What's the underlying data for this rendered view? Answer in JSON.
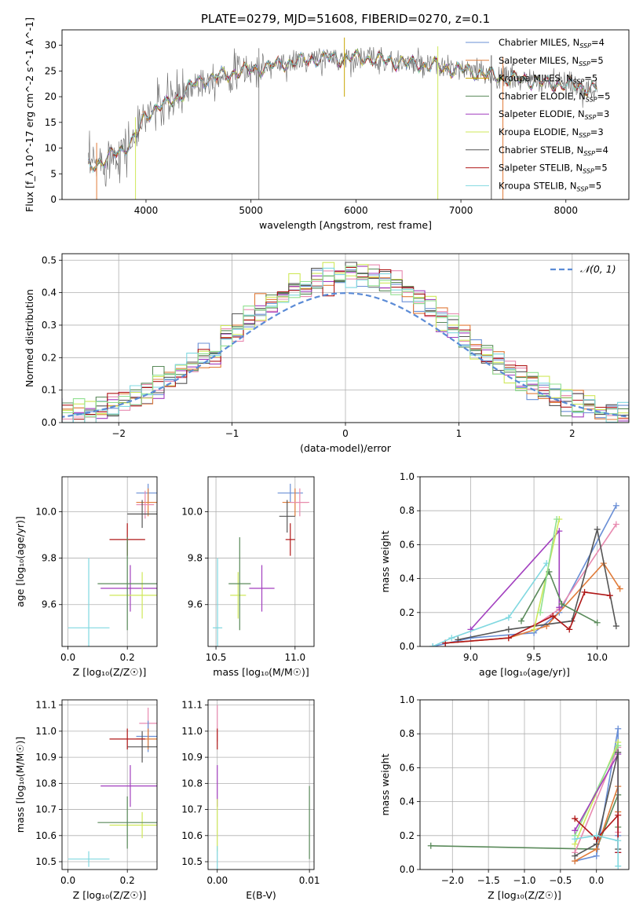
{
  "figure_title": "PLATE=0279, MJD=51608, FIBERID=0270, z=0.1",
  "colors": {
    "Chabrier MILES": "#6a8fd6",
    "Salpeter MILES": "#e07b39",
    "Kroupa MILES": "#c7a400",
    "Chabrier ELODIE": "#5a8a5a",
    "Salpeter ELODIE": "#a23fbf",
    "Kroupa ELODIE": "#cfe85a",
    "Chabrier STELIB": "#555555",
    "Salpeter STELIB": "#b01818",
    "Kroupa STELIB": "#80d8e0",
    "Salpeter MILES 2": "#e88ab0",
    "Kroupa MILES 2": "#90e090",
    "normal": "#5b8bd6",
    "grid": "#b0b0b0"
  },
  "chart_data": [
    {
      "id": "spectrum",
      "type": "line",
      "title": "PLATE=0279, MJD=51608, FIBERID=0270, z=0.1",
      "xlabel": "wavelength [Angstrom, rest frame]",
      "ylabel": "Flux [f_λ 10^-17 erg cm^-2 s^-1 A^-1]",
      "xlim": [
        3200,
        8600
      ],
      "ylim": [
        0,
        33
      ],
      "xticks": [
        4000,
        5000,
        6000,
        7000,
        8000
      ],
      "yticks": [
        0,
        5,
        10,
        15,
        20,
        25,
        30
      ],
      "grid": false,
      "legend_position": "top-right",
      "legend": [
        {
          "label": "Chabrier MILES, N",
          "sub": "SSP",
          "suffix": "=4",
          "color": "#6a8fd6"
        },
        {
          "label": "Salpeter MILES, N",
          "sub": "SSP",
          "suffix": "=5",
          "color": "#e07b39"
        },
        {
          "label": "Kroupa MILES, N",
          "sub": "SSP",
          "suffix": "=5",
          "color": "#c7a400"
        },
        {
          "label": "Chabrier ELODIE, N",
          "sub": "SSP",
          "suffix": "=5",
          "color": "#5a8a5a"
        },
        {
          "label": "Salpeter ELODIE, N",
          "sub": "SSP",
          "suffix": "=3",
          "color": "#a23fbf"
        },
        {
          "label": "Kroupa ELODIE, N",
          "sub": "SSP",
          "suffix": "=3",
          "color": "#cfe85a"
        },
        {
          "label": "Chabrier STELIB, N",
          "sub": "SSP",
          "suffix": "=4",
          "color": "#555555"
        },
        {
          "label": "Salpeter STELIB, N",
          "sub": "SSP",
          "suffix": "=5",
          "color": "#b01818"
        },
        {
          "label": "Kroupa STELIB, N",
          "sub": "SSP",
          "suffix": "=5",
          "color": "#80d8e0"
        }
      ],
      "continuum": [
        [
          3450,
          6.5
        ],
        [
          3600,
          7.5
        ],
        [
          3700,
          9
        ],
        [
          3800,
          10
        ],
        [
          3900,
          12
        ],
        [
          3980,
          16
        ],
        [
          4100,
          18
        ],
        [
          4200,
          18.5
        ],
        [
          4300,
          20
        ],
        [
          4400,
          21.5
        ],
        [
          4500,
          23
        ],
        [
          4700,
          24
        ],
        [
          4900,
          25
        ],
        [
          5100,
          25.5
        ],
        [
          5300,
          26.5
        ],
        [
          5500,
          27
        ],
        [
          5700,
          27.5
        ],
        [
          5900,
          27.5
        ],
        [
          6100,
          27.5
        ],
        [
          6300,
          27
        ],
        [
          6500,
          26.5
        ],
        [
          6700,
          26
        ],
        [
          6900,
          25.5
        ],
        [
          7100,
          25
        ],
        [
          7300,
          24
        ],
        [
          7500,
          23.5
        ],
        [
          7700,
          23
        ],
        [
          7900,
          22.5
        ],
        [
          8100,
          22
        ],
        [
          8300,
          21.5
        ]
      ],
      "spikes": [
        {
          "x": 5075,
          "y": 0
        },
        {
          "x": 5890,
          "y": 20
        },
        {
          "x": 6780,
          "y": 0
        },
        {
          "x": 7290,
          "y": 0
        },
        {
          "x": 7400,
          "y": 0
        },
        {
          "x": 3900,
          "y": 0
        },
        {
          "x": 3530,
          "y": 0
        }
      ]
    },
    {
      "id": "residuals",
      "type": "histogram",
      "xlabel": "(data-model)/error",
      "ylabel": "Normed distribution",
      "xlim": [
        -2.5,
        2.5
      ],
      "ylim": [
        0,
        0.52
      ],
      "xticks": [
        -2,
        -1,
        0,
        1,
        2
      ],
      "yticks": [
        0.0,
        0.1,
        0.2,
        0.3,
        0.4,
        0.5
      ],
      "grid": true,
      "legend_position": "top-right",
      "legend": [
        {
          "label": "𝒩(0, 1)",
          "style": "dashed",
          "color": "#5b8bd6"
        }
      ],
      "bin_width": 0.1
    },
    {
      "id": "age-vs-Z",
      "type": "errorbar",
      "xlabel": "Z [log₁₀(Z/Z☉)]",
      "ylabel": "age  [log₁₀(age/yr)]",
      "xlim": [
        -0.02,
        0.3
      ],
      "ylim": [
        9.42,
        10.15
      ],
      "xticks": [
        0.0,
        0.2
      ],
      "yticks": [
        9.6,
        9.8,
        10.0
      ],
      "grid": true,
      "points": [
        {
          "x": 0.27,
          "y": 10.08,
          "xerr": 0.04,
          "yerr": 0.04,
          "color": "#6a8fd6"
        },
        {
          "x": 0.27,
          "y": 10.04,
          "xerr": 0.04,
          "yerr": 0.06,
          "color": "#e07b39"
        },
        {
          "x": 0.26,
          "y": 10.03,
          "xerr": 0.03,
          "yerr": 0.06,
          "color": "#e88ab0"
        },
        {
          "x": 0.25,
          "y": 9.99,
          "xerr": 0.05,
          "yerr": 0.06,
          "color": "#555555"
        },
        {
          "x": 0.2,
          "y": 9.88,
          "xerr": 0.06,
          "yerr": 0.07,
          "color": "#b01818"
        },
        {
          "x": 0.21,
          "y": 9.67,
          "xerr": 0.1,
          "yerr": 0.1,
          "color": "#a23fbf"
        },
        {
          "x": 0.25,
          "y": 9.64,
          "xerr": 0.11,
          "yerr": 0.1,
          "color": "#cfe85a"
        },
        {
          "x": 0.2,
          "y": 9.69,
          "xerr": 0.1,
          "yerr": 0.2,
          "color": "#5a8a5a"
        },
        {
          "x": 0.07,
          "y": 9.5,
          "xerr": 0.07,
          "yerr": 0.3,
          "color": "#80d8e0"
        }
      ]
    },
    {
      "id": "age-vs-mass",
      "type": "errorbar",
      "xlabel": "mass [log₁₀(M/M☉)]",
      "ylabel": "",
      "xlim": [
        10.45,
        11.12
      ],
      "ylim": [
        9.42,
        10.15
      ],
      "xticks": [
        10.5,
        11.0
      ],
      "yticks": [
        9.6,
        9.8,
        10.0
      ],
      "grid": true,
      "points": [
        {
          "x": 10.97,
          "y": 10.08,
          "xerr": 0.08,
          "yerr": 0.04,
          "color": "#6a8fd6"
        },
        {
          "x": 11.0,
          "y": 10.04,
          "xerr": 0.08,
          "yerr": 0.06,
          "color": "#e07b39"
        },
        {
          "x": 11.03,
          "y": 10.04,
          "xerr": 0.06,
          "yerr": 0.06,
          "color": "#e88ab0"
        },
        {
          "x": 10.95,
          "y": 9.98,
          "xerr": 0.05,
          "yerr": 0.07,
          "color": "#555555"
        },
        {
          "x": 10.97,
          "y": 9.88,
          "xerr": 0.03,
          "yerr": 0.07,
          "color": "#b01818"
        },
        {
          "x": 10.79,
          "y": 9.67,
          "xerr": 0.08,
          "yerr": 0.1,
          "color": "#a23fbf"
        },
        {
          "x": 10.64,
          "y": 9.64,
          "xerr": 0.05,
          "yerr": 0.1,
          "color": "#cfe85a"
        },
        {
          "x": 10.65,
          "y": 9.69,
          "xerr": 0.07,
          "yerr": 0.2,
          "color": "#5a8a5a"
        },
        {
          "x": 10.51,
          "y": 9.5,
          "xerr": 0.03,
          "yerr": 0.3,
          "color": "#80d8e0"
        }
      ]
    },
    {
      "id": "mass-weight-vs-age",
      "type": "line",
      "xlabel": "age  [log₁₀(age/yr)]",
      "ylabel": "mass weight",
      "xlim": [
        8.6,
        10.25
      ],
      "ylim": [
        0.0,
        1.0
      ],
      "xticks": [
        9.0,
        9.5,
        10.0
      ],
      "yticks": [
        0.0,
        0.2,
        0.4,
        0.6,
        0.8,
        1.0
      ],
      "grid": true,
      "series": [
        {
          "color": "#6a8fd6",
          "points": [
            [
              8.7,
              0.0
            ],
            [
              9.0,
              0.05
            ],
            [
              9.5,
              0.08
            ],
            [
              9.7,
              0.2
            ],
            [
              10.15,
              0.83
            ]
          ]
        },
        {
          "color": "#e07b39",
          "points": [
            [
              8.8,
              0.02
            ],
            [
              9.3,
              0.05
            ],
            [
              9.6,
              0.12
            ],
            [
              10.05,
              0.49
            ],
            [
              10.18,
              0.34
            ]
          ]
        },
        {
          "color": "#e88ab0",
          "points": [
            [
              9.5,
              0.12
            ],
            [
              9.7,
              0.22
            ],
            [
              10.15,
              0.72
            ]
          ]
        },
        {
          "color": "#555555",
          "points": [
            [
              8.9,
              0.04
            ],
            [
              9.3,
              0.1
            ],
            [
              9.8,
              0.15
            ],
            [
              10.0,
              0.69
            ],
            [
              10.15,
              0.12
            ]
          ]
        },
        {
          "color": "#b01818",
          "points": [
            [
              8.8,
              0.02
            ],
            [
              9.3,
              0.05
            ],
            [
              9.65,
              0.18
            ],
            [
              9.78,
              0.1
            ],
            [
              9.9,
              0.32
            ],
            [
              10.1,
              0.3
            ]
          ]
        },
        {
          "color": "#a23fbf",
          "points": [
            [
              9.0,
              0.1
            ],
            [
              9.7,
              0.68
            ],
            [
              9.7,
              0.23
            ]
          ]
        },
        {
          "color": "#cfe85a",
          "points": [
            [
              9.5,
              0.1
            ],
            [
              9.7,
              0.75
            ]
          ]
        },
        {
          "color": "#5a8a5a",
          "points": [
            [
              9.4,
              0.15
            ],
            [
              9.62,
              0.44
            ],
            [
              9.72,
              0.25
            ],
            [
              10.0,
              0.14
            ]
          ]
        },
        {
          "color": "#80d8e0",
          "points": [
            [
              8.7,
              0.0
            ],
            [
              8.85,
              0.05
            ],
            [
              9.3,
              0.17
            ],
            [
              9.6,
              0.49
            ]
          ]
        },
        {
          "color": "#90e090",
          "points": [
            [
              9.55,
              0.2
            ],
            [
              9.68,
              0.75
            ]
          ]
        }
      ]
    },
    {
      "id": "mass-vs-Z",
      "type": "errorbar",
      "xlabel": "Z [log₁₀(Z/Z☉)]",
      "ylabel": "mass [log₁₀(M/M☉)]",
      "xlim": [
        -0.02,
        0.3
      ],
      "ylim": [
        10.47,
        11.12
      ],
      "xticks": [
        0.0,
        0.2
      ],
      "yticks": [
        10.5,
        10.6,
        10.7,
        10.8,
        10.9,
        11.0,
        11.1
      ],
      "grid": true,
      "points": [
        {
          "x": 0.27,
          "y": 11.03,
          "xerr": 0.03,
          "yerr": 0.06,
          "color": "#e88ab0"
        },
        {
          "x": 0.27,
          "y": 10.98,
          "xerr": 0.04,
          "yerr": 0.06,
          "color": "#6a8fd6"
        },
        {
          "x": 0.27,
          "y": 10.97,
          "xerr": 0.04,
          "yerr": 0.04,
          "color": "#e07b39"
        },
        {
          "x": 0.25,
          "y": 10.94,
          "xerr": 0.05,
          "yerr": 0.06,
          "color": "#555555"
        },
        {
          "x": 0.2,
          "y": 10.97,
          "xerr": 0.06,
          "yerr": 0.04,
          "color": "#b01818"
        },
        {
          "x": 0.21,
          "y": 10.79,
          "xerr": 0.1,
          "yerr": 0.08,
          "color": "#a23fbf"
        },
        {
          "x": 0.25,
          "y": 10.64,
          "xerr": 0.11,
          "yerr": 0.05,
          "color": "#cfe85a"
        },
        {
          "x": 0.2,
          "y": 10.65,
          "xerr": 0.1,
          "yerr": 0.1,
          "color": "#5a8a5a"
        },
        {
          "x": 0.07,
          "y": 10.51,
          "xerr": 0.07,
          "yerr": 0.03,
          "color": "#80d8e0"
        }
      ]
    },
    {
      "id": "mass-vs-ebv",
      "type": "errorbar",
      "xlabel": "E(B-V)",
      "ylabel": "",
      "xlim": [
        -0.001,
        0.0105
      ],
      "ylim": [
        10.47,
        11.12
      ],
      "xticks": [
        0.0,
        0.01
      ],
      "xticklabels": [
        "0.00",
        "0.01"
      ],
      "yticks": [
        10.5,
        10.6,
        10.7,
        10.8,
        10.9,
        11.0,
        11.1
      ],
      "grid": true,
      "points": [
        {
          "x": 0.0,
          "y": 11.03,
          "xerr": 0,
          "yerr": 0.07,
          "color": "#e88ab0"
        },
        {
          "x": 0.0,
          "y": 10.97,
          "xerr": 0,
          "yerr": 0.04,
          "color": "#b01818"
        },
        {
          "x": 0.0,
          "y": 10.79,
          "xerr": 0,
          "yerr": 0.08,
          "color": "#a23fbf"
        },
        {
          "x": 0.0,
          "y": 10.64,
          "xerr": 0,
          "yerr": 0.1,
          "color": "#cfe85a"
        },
        {
          "x": 0.0,
          "y": 10.51,
          "xerr": 0,
          "yerr": 0.05,
          "color": "#80d8e0"
        },
        {
          "x": 0.01,
          "y": 10.65,
          "xerr": 0,
          "yerr": 0.14,
          "color": "#5a8a5a"
        }
      ]
    },
    {
      "id": "mass-weight-vs-Z",
      "type": "line",
      "xlabel": "Z [log₁₀(Z/Z☉)]",
      "ylabel": "mass weight",
      "xlim": [
        -2.45,
        0.45
      ],
      "ylim": [
        0.0,
        1.0
      ],
      "xticks": [
        -2.0,
        -1.5,
        -1.0,
        -0.5,
        0.0
      ],
      "xticklabels": [
        "−2.0",
        "−1.5",
        "−1.0",
        "−0.5",
        "0.0"
      ],
      "yticks": [
        0.0,
        0.2,
        0.4,
        0.6,
        0.8,
        1.0
      ],
      "grid": true,
      "series": [
        {
          "color": "#5a8a5a",
          "points": [
            [
              -2.3,
              0.14
            ],
            [
              0.0,
              0.12
            ],
            [
              0.3,
              0.44
            ],
            [
              0.3,
              0.25
            ]
          ]
        },
        {
          "color": "#6a8fd6",
          "points": [
            [
              -0.3,
              0.05
            ],
            [
              0.0,
              0.08
            ],
            [
              0.3,
              0.83
            ],
            [
              0.3,
              0.2
            ]
          ]
        },
        {
          "color": "#e07b39",
          "points": [
            [
              -0.3,
              0.05
            ],
            [
              0.0,
              0.12
            ],
            [
              0.3,
              0.49
            ],
            [
              0.3,
              0.34
            ]
          ]
        },
        {
          "color": "#e88ab0",
          "points": [
            [
              -0.3,
              0.1
            ],
            [
              0.3,
              0.72
            ],
            [
              0.3,
              0.22
            ]
          ]
        },
        {
          "color": "#cfe85a",
          "points": [
            [
              -0.3,
              0.15
            ],
            [
              0.3,
              0.75
            ]
          ]
        },
        {
          "color": "#90e090",
          "points": [
            [
              -0.3,
              0.2
            ],
            [
              0.3,
              0.73
            ]
          ]
        },
        {
          "color": "#a23fbf",
          "points": [
            [
              -0.3,
              0.23
            ],
            [
              0.3,
              0.68
            ],
            [
              0.3,
              0.1
            ]
          ]
        },
        {
          "color": "#555555",
          "points": [
            [
              -0.3,
              0.08
            ],
            [
              0.0,
              0.15
            ],
            [
              0.3,
              0.69
            ],
            [
              0.3,
              0.12
            ]
          ]
        },
        {
          "color": "#b01818",
          "points": [
            [
              -0.3,
              0.3
            ],
            [
              0.0,
              0.18
            ],
            [
              0.3,
              0.32
            ],
            [
              0.3,
              0.1
            ]
          ]
        },
        {
          "color": "#80d8e0",
          "points": [
            [
              -0.3,
              0.18
            ],
            [
              0.0,
              0.2
            ],
            [
              0.3,
              0.17
            ],
            [
              0.3,
              0.02
            ]
          ]
        }
      ]
    }
  ]
}
